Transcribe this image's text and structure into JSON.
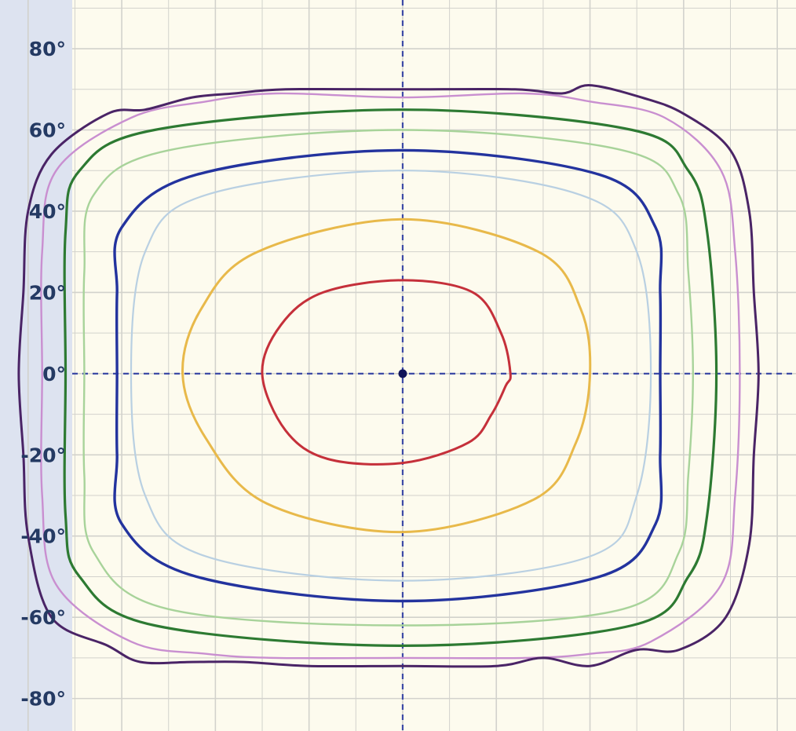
{
  "chart_data": {
    "type": "line",
    "title": "",
    "xlabel": "",
    "ylabel": "",
    "xlim": [
      -86,
      84
    ],
    "ylim": [
      -88,
      92
    ],
    "grid": true,
    "yticks": [
      80,
      60,
      40,
      20,
      0,
      -20,
      -40,
      -60,
      -80
    ],
    "ytick_labels": [
      "80°",
      "60°",
      "40°",
      "20°",
      "0°",
      "-20°",
      "-40°",
      "-60°",
      "-80°"
    ],
    "colors": {
      "background": "#fdfbee",
      "axis_strip": "#dde3f0",
      "grid": "#d2d2cc",
      "crosshair": "#3d4aa6",
      "tick_text": "#243a63"
    },
    "series": [
      {
        "color": "#c5303a",
        "width": 3.0,
        "values": [
          [
            0,
            23
          ],
          [
            15,
            20
          ],
          [
            21,
            10
          ],
          [
            23,
            0
          ],
          [
            22,
            -3
          ],
          [
            19,
            -10
          ],
          [
            14,
            -17
          ],
          [
            0,
            -22
          ],
          [
            -16,
            -21
          ],
          [
            -25,
            -14
          ],
          [
            -30,
            0
          ],
          [
            -26,
            12
          ],
          [
            -17,
            20
          ]
        ]
      },
      {
        "color": "#e8b94a",
        "width": 3.0,
        "values": [
          [
            0,
            38
          ],
          [
            29,
            30
          ],
          [
            38,
            16
          ],
          [
            40,
            0
          ],
          [
            37,
            -17
          ],
          [
            28,
            -31
          ],
          [
            0,
            -39
          ],
          [
            -29,
            -32
          ],
          [
            -42,
            -16
          ],
          [
            -47,
            0
          ],
          [
            -43,
            16
          ],
          [
            -31,
            30
          ]
        ]
      },
      {
        "color": "#b9d0e2",
        "width": 2.2,
        "values": [
          [
            0,
            50
          ],
          [
            38,
            44
          ],
          [
            50,
            30
          ],
          [
            53,
            0
          ],
          [
            50,
            -30
          ],
          [
            40,
            -45
          ],
          [
            0,
            -51
          ],
          [
            -42,
            -45
          ],
          [
            -55,
            -30
          ],
          [
            -58,
            0
          ],
          [
            -55,
            30
          ],
          [
            -42,
            44
          ]
        ]
      },
      {
        "color": "#23339e",
        "width": 3.4,
        "values": [
          [
            0,
            55
          ],
          [
            42,
            49
          ],
          [
            54,
            36
          ],
          [
            55,
            20
          ],
          [
            55,
            0
          ],
          [
            55,
            -20
          ],
          [
            54,
            -37
          ],
          [
            42,
            -50
          ],
          [
            0,
            -56
          ],
          [
            -44,
            -50
          ],
          [
            -60,
            -37
          ],
          [
            -61,
            -20
          ],
          [
            -61,
            0
          ],
          [
            -61,
            20
          ],
          [
            -60,
            36
          ],
          [
            -44,
            49
          ]
        ]
      },
      {
        "color": "#a8d39a",
        "width": 2.4,
        "values": [
          [
            0,
            60
          ],
          [
            47,
            55
          ],
          [
            59,
            44
          ],
          [
            61,
            25
          ],
          [
            62,
            0
          ],
          [
            61,
            -25
          ],
          [
            59,
            -44
          ],
          [
            47,
            -58
          ],
          [
            0,
            -62
          ],
          [
            -50,
            -58
          ],
          [
            -66,
            -44
          ],
          [
            -68,
            -25
          ],
          [
            -68,
            0
          ],
          [
            -68,
            25
          ],
          [
            -66,
            44
          ],
          [
            -50,
            55
          ]
        ]
      },
      {
        "color": "#2d7a32",
        "width": 3.2,
        "values": [
          [
            0,
            65
          ],
          [
            49,
            60
          ],
          [
            61,
            50
          ],
          [
            65,
            35
          ],
          [
            67,
            0
          ],
          [
            65,
            -35
          ],
          [
            61,
            -50
          ],
          [
            49,
            -62
          ],
          [
            0,
            -67
          ],
          [
            -53,
            -62
          ],
          [
            -69,
            -50
          ],
          [
            -72,
            -35
          ],
          [
            -72,
            0
          ],
          [
            -72,
            35
          ],
          [
            -69,
            50
          ],
          [
            -53,
            60
          ]
        ]
      },
      {
        "color": "#c98fd0",
        "width": 2.4,
        "values": [
          [
            0,
            68
          ],
          [
            26,
            69
          ],
          [
            40,
            67
          ],
          [
            56,
            63
          ],
          [
            68,
            50
          ],
          [
            71,
            30
          ],
          [
            72,
            0
          ],
          [
            71,
            -30
          ],
          [
            68,
            -52
          ],
          [
            53,
            -66
          ],
          [
            40,
            -69
          ],
          [
            26,
            -70
          ],
          [
            0,
            -70
          ],
          [
            -27,
            -70
          ],
          [
            -42,
            -69
          ],
          [
            -58,
            -66
          ],
          [
            -74,
            -52
          ],
          [
            -77,
            -30
          ],
          [
            -77,
            0
          ],
          [
            -77,
            30
          ],
          [
            -74,
            50
          ],
          [
            -58,
            63
          ],
          [
            -42,
            67
          ],
          [
            -27,
            69
          ]
        ]
      },
      {
        "color": "#4a2466",
        "width": 3.0,
        "values": [
          [
            0,
            70
          ],
          [
            24,
            70
          ],
          [
            34,
            69
          ],
          [
            40,
            71
          ],
          [
            51,
            68
          ],
          [
            60,
            64
          ],
          [
            70,
            55
          ],
          [
            74,
            40
          ],
          [
            75,
            20
          ],
          [
            76,
            0
          ],
          [
            75,
            -20
          ],
          [
            74,
            -42
          ],
          [
            69,
            -60
          ],
          [
            59,
            -68
          ],
          [
            50,
            -68
          ],
          [
            40,
            -72
          ],
          [
            30,
            -70
          ],
          [
            20,
            -72
          ],
          [
            0,
            -72
          ],
          [
            -20,
            -72
          ],
          [
            -34,
            -71
          ],
          [
            -45,
            -71
          ],
          [
            -56,
            -71
          ],
          [
            -63,
            -67
          ],
          [
            -75,
            -60
          ],
          [
            -80,
            -40
          ],
          [
            -81,
            -20
          ],
          [
            -82,
            0
          ],
          [
            -81,
            20
          ],
          [
            -80,
            40
          ],
          [
            -75,
            54
          ],
          [
            -63,
            64
          ],
          [
            -55,
            65
          ],
          [
            -45,
            68
          ],
          [
            -36,
            69
          ],
          [
            -25,
            70
          ]
        ]
      }
    ]
  }
}
